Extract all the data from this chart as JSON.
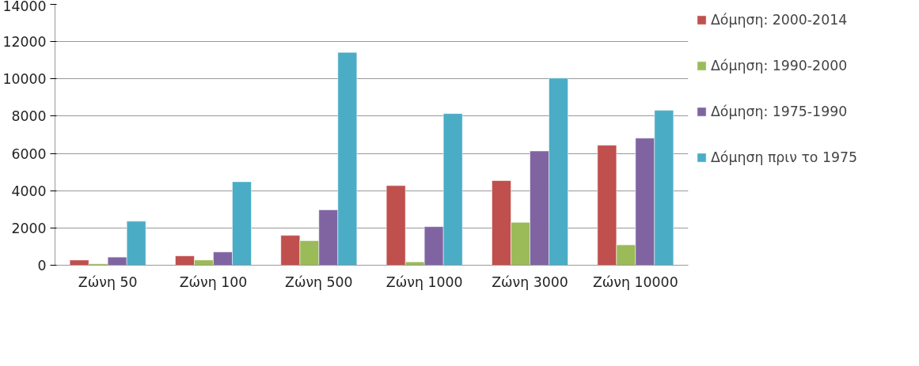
{
  "chart_data": {
    "type": "bar",
    "categories": [
      "Ζώνη 50",
      "Ζώνη 100",
      "Ζώνη 500",
      "Ζώνη 1000",
      "Ζώνη 3000",
      "Ζώνη 10000"
    ],
    "series": [
      {
        "name": "Δόμηση: 2000-2014",
        "color": "#c0504d",
        "values": [
          280,
          500,
          1600,
          4270,
          4540,
          6440
        ]
      },
      {
        "name": "Δόμηση: 1990-2000",
        "color": "#9bbb59",
        "values": [
          70,
          280,
          1320,
          180,
          2300,
          1090
        ]
      },
      {
        "name": "Δόμηση: 1975-1990",
        "color": "#8064a2",
        "values": [
          440,
          710,
          2970,
          2070,
          6130,
          6820
        ]
      },
      {
        "name": "Δόμηση πριν το 1975",
        "color": "#4bacc6",
        "values": [
          2360,
          4480,
          11420,
          8140,
          10040,
          8310
        ]
      }
    ],
    "ylim": [
      0,
      14000
    ],
    "yticks": [
      0,
      2000,
      4000,
      6000,
      8000,
      10000,
      12000,
      14000
    ],
    "grid": "y",
    "legend": "right"
  }
}
